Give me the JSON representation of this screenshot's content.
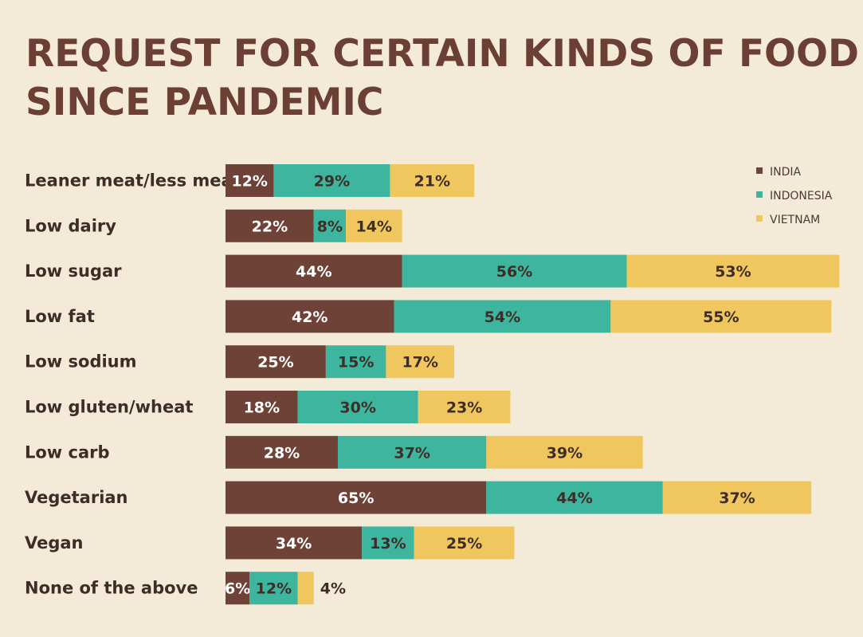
{
  "chart_data": {
    "type": "bar",
    "orientation": "horizontal",
    "stacked": true,
    "title_lines": [
      "REQUEST FOR CERTAIN KINDS OF FOOD",
      "SINCE PANDEMIC"
    ],
    "categories": [
      "Leaner meat/less meat",
      "Low dairy",
      "Low sugar",
      "Low fat",
      "Low sodium",
      "Low gluten/wheat",
      "Low carb",
      "Vegetarian",
      "Vegan",
      "None of the above"
    ],
    "series": [
      {
        "name": "INDIA",
        "color": "#6e4237",
        "values": [
          12,
          22,
          44,
          42,
          25,
          18,
          28,
          65,
          34,
          6
        ]
      },
      {
        "name": "INDONESIA",
        "color": "#3db59f",
        "values": [
          29,
          8,
          56,
          54,
          15,
          30,
          37,
          44,
          13,
          12
        ]
      },
      {
        "name": "VIETNAM",
        "color": "#f0c75e",
        "values": [
          21,
          14,
          53,
          55,
          17,
          23,
          39,
          37,
          25,
          4
        ]
      }
    ],
    "value_suffix": "%",
    "legend_position": "top-right",
    "grid": false
  }
}
